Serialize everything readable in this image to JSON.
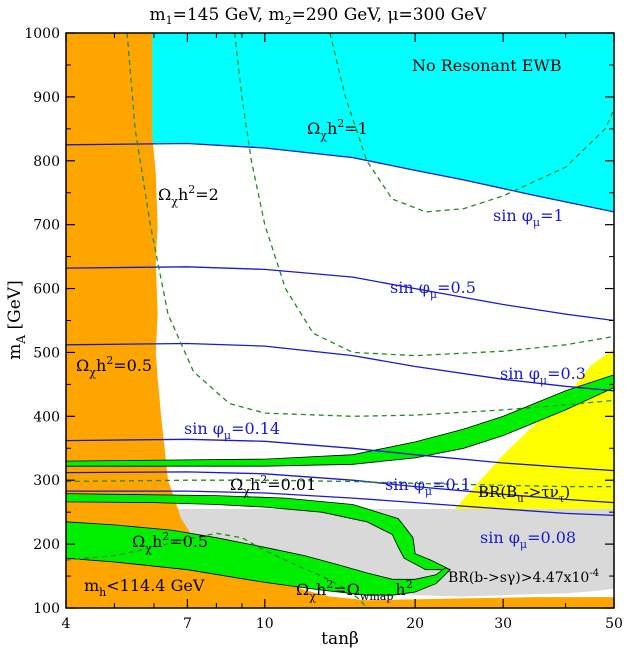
{
  "chart_data": {
    "type": "area",
    "title": {
      "m1": "m",
      "m1_sub": "1",
      "m1_val": "=145 GeV, ",
      "m2": "m",
      "m2_sub": "2",
      "m2_val": "=290 GeV, ",
      "mu": "μ=300 GeV"
    },
    "xlabel": "tanβ",
    "ylabel": {
      "main": "m",
      "sub": "A",
      "unit": "  [GeV]"
    },
    "x_scale": "log",
    "xlim": [
      4,
      50
    ],
    "ylim": [
      100,
      1000
    ],
    "x_ticks": [
      {
        "v": 4,
        "label": "4"
      },
      {
        "v": 7,
        "label": "7"
      },
      {
        "v": 10,
        "label": "10"
      },
      {
        "v": 20,
        "label": "20"
      },
      {
        "v": 30,
        "label": "30"
      },
      {
        "v": 50,
        "label": "50"
      }
    ],
    "x_minor": [
      5,
      6,
      8,
      9,
      40
    ],
    "y_ticks": [
      100,
      200,
      300,
      400,
      500,
      600,
      700,
      800,
      900,
      1000
    ],
    "colors": {
      "excluded_higgs": "#ffa500",
      "no_resonant_ewb": "#00ffff",
      "bsg": "#d9d9d9",
      "btaunu": "#ffff00",
      "wmap": "#00ee00",
      "contours": "#228b22",
      "phase": "#1a1acc"
    },
    "regions": [
      {
        "name": "no_resonant_ewb",
        "points": [
          [
            5.85,
            1000
          ],
          [
            50,
            1000
          ],
          [
            50,
            720
          ],
          [
            35,
            745
          ],
          [
            25,
            770
          ],
          [
            20,
            785
          ],
          [
            15,
            805
          ],
          [
            10,
            820
          ],
          [
            7,
            827
          ],
          [
            5.95,
            827
          ]
        ]
      },
      {
        "name": "btaunu",
        "points": [
          [
            24,
            255
          ],
          [
            50,
            255
          ],
          [
            50,
            505
          ],
          [
            45,
            480
          ],
          [
            40,
            430
          ],
          [
            35,
            390
          ],
          [
            30,
            340
          ],
          [
            27,
            300
          ]
        ]
      },
      {
        "name": "bsg",
        "points": [
          [
            5.8,
            255
          ],
          [
            50,
            255
          ],
          [
            50,
            130
          ],
          [
            45,
            126
          ],
          [
            40,
            123
          ],
          [
            30,
            120
          ],
          [
            25,
            118
          ],
          [
            20,
            120
          ],
          [
            17,
            128
          ],
          [
            14,
            140
          ],
          [
            11,
            160
          ],
          [
            8.5,
            185
          ],
          [
            7,
            215
          ],
          [
            6.3,
            240
          ]
        ]
      },
      {
        "name": "excluded_higgs",
        "points": [
          [
            4,
            1000
          ],
          [
            5.95,
            1000
          ],
          [
            5.95,
            840
          ],
          [
            6.05,
            780
          ],
          [
            6.1,
            700
          ],
          [
            6.05,
            640
          ],
          [
            6.1,
            560
          ],
          [
            6.05,
            500
          ],
          [
            6.1,
            460
          ],
          [
            6.2,
            400
          ],
          [
            6.3,
            350
          ],
          [
            6.4,
            300
          ],
          [
            6.6,
            270
          ],
          [
            6.8,
            240
          ],
          [
            7.2,
            210
          ],
          [
            8,
            190
          ],
          [
            9,
            170
          ],
          [
            10,
            155
          ],
          [
            11,
            140
          ],
          [
            12,
            128
          ],
          [
            13.5,
            118
          ],
          [
            16,
            112
          ],
          [
            25,
            115
          ],
          [
            35,
            117
          ],
          [
            50,
            117
          ],
          [
            50,
            100
          ],
          [
            4,
            100
          ]
        ]
      },
      {
        "name": "wmap_main",
        "points": [
          [
            4,
            266
          ],
          [
            6,
            265
          ],
          [
            8,
            262
          ],
          [
            10,
            258
          ],
          [
            13,
            250
          ],
          [
            16,
            235
          ],
          [
            18,
            215
          ],
          [
            18.5,
            195
          ],
          [
            19,
            178
          ],
          [
            21,
            160
          ],
          [
            23.5,
            160
          ],
          [
            21.5,
            175
          ],
          [
            20,
            185
          ],
          [
            19.8,
            210
          ],
          [
            18.5,
            240
          ],
          [
            15,
            262
          ],
          [
            11,
            272
          ],
          [
            8,
            276
          ],
          [
            5,
            278
          ],
          [
            4,
            279
          ]
        ]
      },
      {
        "name": "wmap_lower",
        "points": [
          [
            4,
            235
          ],
          [
            5,
            230
          ],
          [
            6.5,
            222
          ],
          [
            8,
            210
          ],
          [
            10,
            195
          ],
          [
            12,
            182
          ],
          [
            14,
            168
          ],
          [
            16,
            155
          ],
          [
            18,
            145
          ],
          [
            20,
            145
          ],
          [
            22,
            152
          ],
          [
            23,
            163
          ],
          [
            23.5,
            160
          ],
          [
            22,
            138
          ],
          [
            20,
            125
          ],
          [
            18,
            120
          ],
          [
            16,
            120
          ],
          [
            13,
            128
          ],
          [
            10,
            140
          ],
          [
            7,
            160
          ],
          [
            5,
            172
          ],
          [
            4,
            178
          ]
        ]
      },
      {
        "name": "wmap_band",
        "points": [
          [
            4,
            322
          ],
          [
            10,
            322
          ],
          [
            15,
            325
          ],
          [
            20,
            335
          ],
          [
            25,
            350
          ],
          [
            30,
            370
          ],
          [
            40,
            410
          ],
          [
            50,
            445
          ],
          [
            50,
            465
          ],
          [
            40,
            440
          ],
          [
            30,
            400
          ],
          [
            25,
            380
          ],
          [
            20,
            360
          ],
          [
            15,
            340
          ],
          [
            10,
            333
          ],
          [
            4,
            330
          ]
        ]
      }
    ],
    "phase_curves": [
      {
        "name": "sin_phi_1",
        "points": [
          [
            4,
            825
          ],
          [
            7,
            827
          ],
          [
            10,
            820
          ],
          [
            15,
            805
          ],
          [
            20,
            785
          ],
          [
            25,
            770
          ],
          [
            35,
            745
          ],
          [
            50,
            720
          ]
        ]
      },
      {
        "name": "sin_phi_0.5",
        "points": [
          [
            4,
            632
          ],
          [
            7,
            634
          ],
          [
            10,
            630
          ],
          [
            15,
            618
          ],
          [
            20,
            600
          ],
          [
            30,
            575
          ],
          [
            40,
            560
          ],
          [
            50,
            550
          ]
        ]
      },
      {
        "name": "sin_phi_0.3",
        "points": [
          [
            4,
            512
          ],
          [
            7,
            514
          ],
          [
            10,
            510
          ],
          [
            15,
            495
          ],
          [
            20,
            478
          ],
          [
            30,
            458
          ],
          [
            40,
            447
          ],
          [
            50,
            440
          ]
        ]
      },
      {
        "name": "sin_phi_0.14",
        "points": [
          [
            4,
            362
          ],
          [
            7,
            364
          ],
          [
            10,
            361
          ],
          [
            15,
            350
          ],
          [
            20,
            340
          ],
          [
            30,
            327
          ],
          [
            40,
            320
          ],
          [
            50,
            315
          ]
        ]
      },
      {
        "name": "sin_phi_0.1",
        "points": [
          [
            4,
            312
          ],
          [
            7,
            313
          ],
          [
            10,
            310
          ],
          [
            15,
            300
          ],
          [
            20,
            290
          ],
          [
            30,
            278
          ],
          [
            40,
            270
          ],
          [
            50,
            265
          ]
        ]
      },
      {
        "name": "sin_phi_0.08",
        "points": [
          [
            4,
            283
          ],
          [
            7,
            283
          ],
          [
            10,
            280
          ],
          [
            15,
            272
          ],
          [
            20,
            265
          ],
          [
            30,
            255
          ],
          [
            40,
            248
          ],
          [
            50,
            245
          ]
        ]
      }
    ],
    "relic_contours": [
      {
        "name": "omega_1",
        "points": [
          [
            13.5,
            1000
          ],
          [
            14.5,
            900
          ],
          [
            16,
            800
          ],
          [
            18,
            740
          ],
          [
            21,
            720
          ],
          [
            25,
            725
          ],
          [
            30,
            745
          ],
          [
            40,
            790
          ],
          [
            48,
            850
          ],
          [
            50,
            880
          ]
        ]
      },
      {
        "name": "omega_2",
        "points": [
          [
            8.7,
            1000
          ],
          [
            9,
            900
          ],
          [
            9.4,
            800
          ],
          [
            10,
            700
          ],
          [
            11,
            600
          ],
          [
            12.5,
            530
          ],
          [
            15,
            500
          ],
          [
            20,
            495
          ],
          [
            30,
            502
          ],
          [
            40,
            512
          ],
          [
            50,
            525
          ]
        ]
      },
      {
        "name": "omega_0.5",
        "points": [
          [
            5.3,
            1000
          ],
          [
            5.5,
            850
          ],
          [
            5.9,
            700
          ],
          [
            6.4,
            560
          ],
          [
            7.2,
            470
          ],
          [
            8.5,
            420
          ],
          [
            10,
            405
          ],
          [
            15,
            400
          ],
          [
            20,
            402
          ],
          [
            30,
            410
          ],
          [
            40,
            418
          ],
          [
            50,
            425
          ]
        ]
      },
      {
        "name": "omega_0.01",
        "points": [
          [
            4,
            298
          ],
          [
            7,
            300
          ],
          [
            10,
            300
          ],
          [
            15,
            298
          ],
          [
            20,
            295
          ],
          [
            30,
            292
          ],
          [
            40,
            290
          ],
          [
            50,
            290
          ]
        ]
      },
      {
        "name": "omega_0.5_low",
        "points": [
          [
            4,
            175
          ],
          [
            5,
            182
          ],
          [
            6,
            195
          ],
          [
            7,
            208
          ],
          [
            8,
            217
          ],
          [
            9,
            210
          ],
          [
            10,
            190
          ],
          [
            11.5,
            168
          ],
          [
            13,
            150
          ],
          [
            14.5,
            130
          ],
          [
            15.5,
            113
          ],
          [
            16,
            100
          ]
        ]
      }
    ],
    "annotations": [
      {
        "id": "no_res",
        "text": "No Resonant EWB"
      },
      {
        "id": "om1",
        "text": "h",
        "sym": "Ω",
        "sub": "χ",
        "sup": "2",
        "tail": "=1"
      },
      {
        "id": "om2",
        "text": "h",
        "sym": "Ω",
        "sub": "χ",
        "sup": "2",
        "tail": "=2"
      },
      {
        "id": "om05",
        "text": "h",
        "sym": "Ω",
        "sub": "χ",
        "sup": "2",
        "tail": "=0.5"
      },
      {
        "id": "om001",
        "text": "h",
        "sym": "Ω",
        "sub": "χ",
        "sup": "2",
        "tail": "=0.01"
      },
      {
        "id": "om05b",
        "text": "h",
        "sym": "Ω",
        "sub": "χ",
        "sup": "2",
        "tail": "=0.5"
      },
      {
        "id": "wmap",
        "sym": "Ω",
        "sub": "χ",
        "mid": "h",
        "sup": "2",
        "eq": "=Ω",
        "sub2": "wmap",
        "h2": "h",
        "sup2": "2"
      },
      {
        "id": "sp1",
        "text": "sin φ",
        "sub": "μ",
        "tail": "=1"
      },
      {
        "id": "sp05",
        "text": "sin φ",
        "sub": "μ",
        "tail": "=0.5"
      },
      {
        "id": "sp03",
        "text": "sin φ",
        "sub": "μ",
        "tail": "=0.3"
      },
      {
        "id": "sp014",
        "text": "sin φ",
        "sub": "μ",
        "tail": "=0.14"
      },
      {
        "id": "sp01",
        "text": "sin φ",
        "sub": "μ",
        "tail": "=0.1"
      },
      {
        "id": "sp008",
        "text": "sin φ",
        "sub": "μ",
        "tail": "=0.08"
      },
      {
        "id": "btau",
        "text": "BR(B",
        "sub": "u",
        "tail": "->τν",
        "sub2": "τ",
        "end": ")"
      },
      {
        "id": "bsg",
        "text": "BR(b->sγ)>4.47x10",
        "sup": "-4"
      },
      {
        "id": "mh",
        "text": "m",
        "sub": "h",
        "tail": "<114.4 GeV"
      }
    ]
  }
}
